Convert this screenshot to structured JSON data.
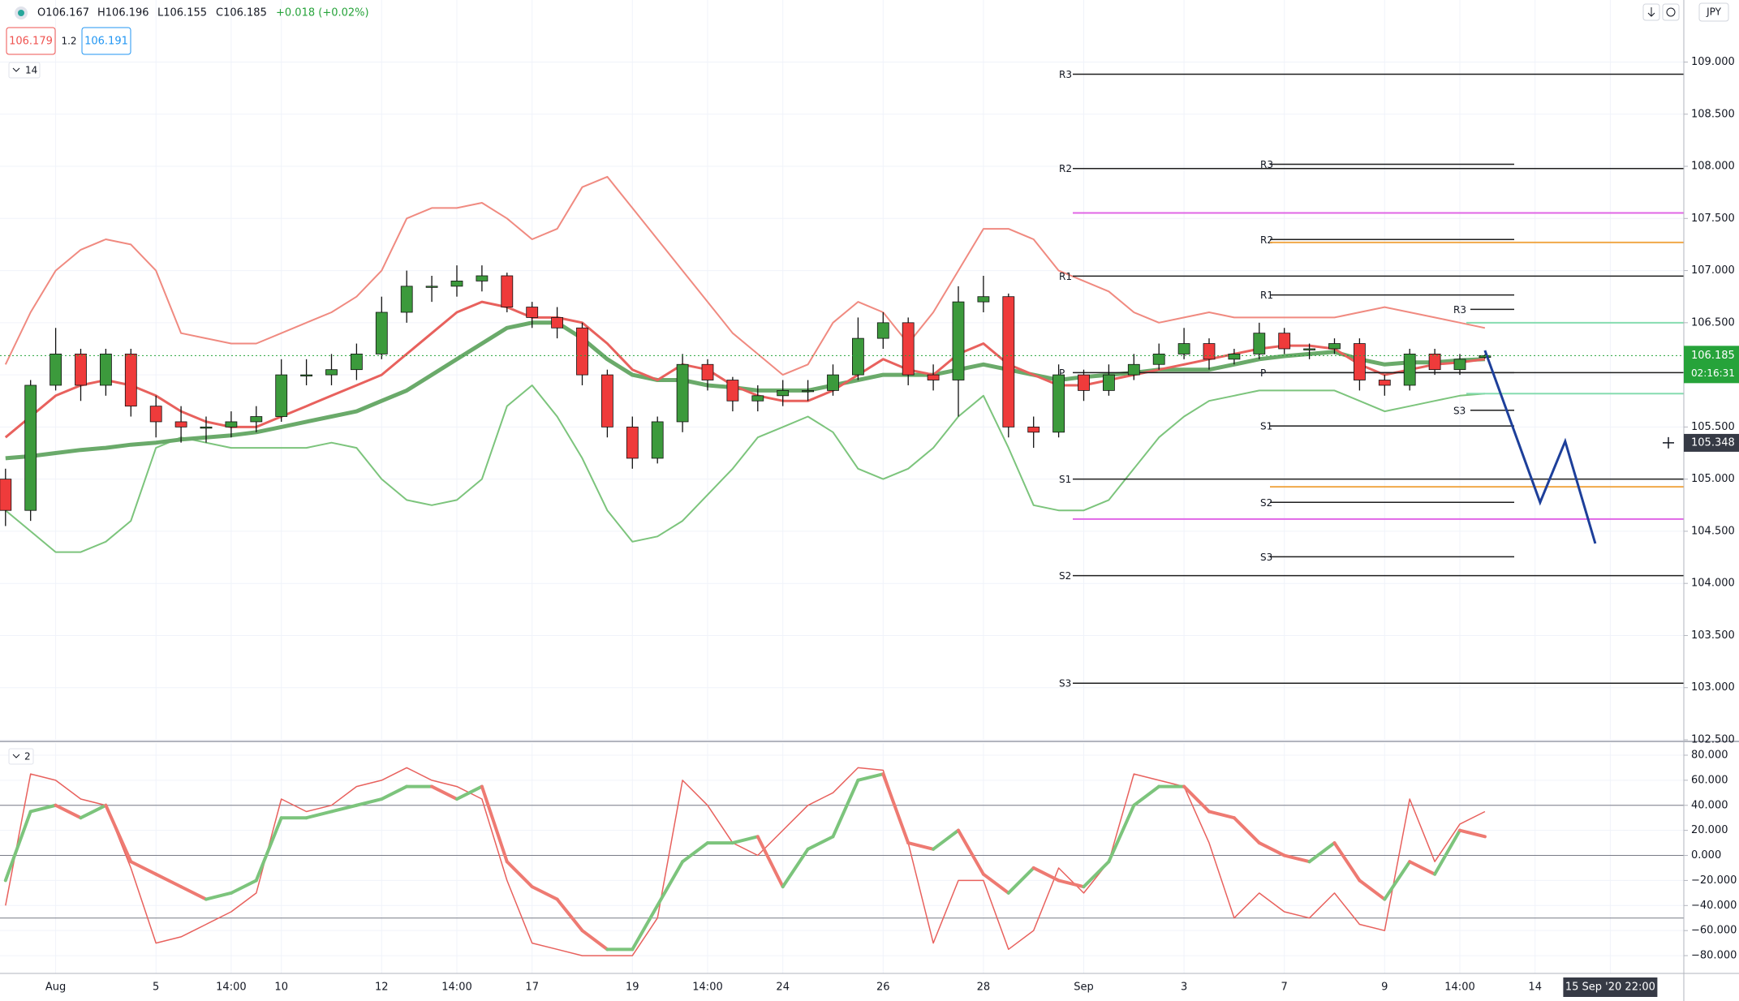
{
  "chart_data": {
    "type": "candlestick",
    "header": {
      "ohlc": [
        "O106.167",
        "H106.196",
        "L106.155",
        "C106.185"
      ],
      "change": "+0.018 (+0.02%)",
      "bid": "106.179",
      "spread": "1.2",
      "ask": "106.191",
      "indicator_length": "14",
      "oscillator_length": "2",
      "currency": "JPY"
    },
    "categories": [
      null,
      null,
      "Aug",
      null,
      null,
      null,
      "5",
      null,
      null,
      "14:00",
      null,
      "10",
      null,
      null,
      null,
      "12",
      null,
      null,
      "14:00",
      null,
      null,
      "17",
      null,
      null,
      null,
      "19",
      null,
      null,
      "14:00",
      null,
      null,
      "24",
      null,
      null,
      null,
      "26",
      null,
      null,
      null,
      "28",
      null,
      null,
      null,
      "Sep",
      null,
      null,
      null,
      "3",
      null,
      null,
      null,
      "7",
      null,
      null,
      null,
      "9",
      null,
      null,
      "14:00",
      null,
      null,
      "14",
      null,
      null,
      "15 Sep '20 22:00",
      null
    ],
    "open": [
      105.0,
      104.7,
      105.9,
      106.2,
      105.9,
      106.2,
      105.7,
      105.55,
      105.5,
      105.5,
      105.55,
      105.6,
      106.0,
      106.0,
      106.05,
      106.2,
      106.6,
      106.85,
      106.85,
      106.9,
      106.95,
      106.65,
      106.55,
      106.45,
      106.0,
      105.5,
      105.2,
      105.55,
      106.1,
      105.95,
      105.75,
      105.8,
      105.85,
      105.85,
      106.0,
      106.35,
      106.5,
      106.0,
      105.95,
      106.7,
      106.75,
      105.5,
      105.45,
      106.0,
      105.85,
      106.0,
      106.1,
      106.2,
      106.3,
      106.15,
      106.2,
      106.4,
      106.25,
      106.25,
      106.3,
      105.95,
      105.9,
      106.2,
      106.05,
      106.167,
      null,
      null,
      null,
      null,
      null,
      null
    ],
    "high": [
      105.1,
      105.95,
      106.45,
      106.25,
      106.25,
      106.25,
      105.8,
      105.7,
      105.6,
      105.65,
      105.7,
      106.15,
      106.15,
      106.2,
      106.3,
      106.75,
      107.0,
      106.95,
      107.05,
      107.05,
      106.98,
      106.7,
      106.65,
      106.5,
      106.05,
      105.6,
      105.6,
      106.2,
      106.15,
      105.98,
      105.9,
      105.95,
      105.95,
      106.1,
      106.55,
      106.6,
      106.55,
      106.1,
      106.85,
      106.95,
      106.78,
      105.6,
      106.1,
      106.05,
      106.1,
      106.2,
      106.3,
      106.45,
      106.35,
      106.25,
      106.5,
      106.45,
      106.3,
      106.35,
      106.35,
      106.0,
      106.25,
      106.25,
      106.2,
      106.196,
      null,
      null,
      null,
      null,
      null,
      null
    ],
    "low": [
      104.55,
      104.6,
      105.85,
      105.75,
      105.8,
      105.6,
      105.4,
      105.35,
      105.35,
      105.4,
      105.45,
      105.55,
      105.9,
      105.9,
      105.95,
      106.15,
      106.5,
      106.7,
      106.75,
      106.8,
      106.6,
      106.45,
      106.35,
      105.9,
      105.4,
      105.1,
      105.15,
      105.45,
      105.85,
      105.65,
      105.65,
      105.7,
      105.75,
      105.8,
      105.95,
      106.25,
      105.9,
      105.85,
      105.6,
      106.6,
      105.4,
      105.3,
      105.4,
      105.75,
      105.8,
      105.95,
      106.05,
      106.15,
      106.05,
      106.1,
      106.15,
      106.2,
      106.15,
      106.2,
      105.85,
      105.8,
      105.85,
      106.0,
      106.0,
      106.155,
      null,
      null,
      null,
      null,
      null,
      null
    ],
    "close": [
      104.7,
      105.9,
      106.2,
      105.9,
      106.2,
      105.7,
      105.55,
      105.5,
      105.5,
      105.55,
      105.6,
      106.0,
      106.0,
      106.05,
      106.2,
      106.6,
      106.85,
      106.85,
      106.9,
      106.95,
      106.65,
      106.55,
      106.45,
      106.0,
      105.5,
      105.2,
      105.55,
      106.1,
      105.95,
      105.75,
      105.8,
      105.85,
      105.85,
      106.0,
      106.35,
      106.5,
      106.0,
      105.95,
      106.7,
      106.75,
      105.5,
      105.45,
      106.0,
      105.85,
      106.0,
      106.1,
      106.2,
      106.3,
      106.15,
      106.2,
      106.4,
      106.25,
      106.25,
      106.3,
      105.95,
      105.9,
      106.2,
      106.05,
      106.15,
      106.185,
      null,
      null,
      null,
      null,
      null,
      null
    ],
    "up_color": "#3c9a3c",
    "down_color": "#ef3b3b",
    "overlays": [
      {
        "color": "#f08a80",
        "width": 2,
        "values": [
          106.1,
          106.6,
          107.0,
          107.2,
          107.3,
          107.25,
          107.0,
          106.4,
          106.35,
          106.3,
          106.3,
          106.4,
          106.5,
          106.6,
          106.75,
          107.0,
          107.5,
          107.6,
          107.6,
          107.65,
          107.5,
          107.3,
          107.4,
          107.8,
          107.9,
          107.6,
          107.3,
          107.0,
          106.7,
          106.4,
          106.2,
          106.0,
          106.1,
          106.5,
          106.7,
          106.6,
          106.3,
          106.6,
          107.0,
          107.4,
          107.4,
          107.3,
          107.0,
          106.9,
          106.8,
          106.6,
          106.5,
          106.55,
          106.6,
          106.55,
          106.55,
          106.55,
          106.55,
          106.55,
          106.6,
          106.65,
          106.6,
          106.55,
          106.5,
          106.45,
          null,
          null,
          null,
          null,
          null,
          null
        ]
      },
      {
        "color": "#7cc47c",
        "width": 2,
        "values": [
          104.7,
          104.5,
          104.3,
          104.3,
          104.4,
          104.6,
          105.3,
          105.4,
          105.35,
          105.3,
          105.3,
          105.3,
          105.3,
          105.35,
          105.3,
          105.0,
          104.8,
          104.75,
          104.8,
          105.0,
          105.7,
          105.9,
          105.6,
          105.2,
          104.7,
          104.4,
          104.45,
          104.6,
          104.85,
          105.1,
          105.4,
          105.5,
          105.6,
          105.45,
          105.1,
          105.0,
          105.1,
          105.3,
          105.6,
          105.8,
          105.3,
          104.75,
          104.7,
          104.7,
          104.8,
          105.1,
          105.4,
          105.6,
          105.75,
          105.8,
          105.85,
          105.85,
          105.85,
          105.85,
          105.75,
          105.65,
          105.7,
          105.75,
          105.8,
          105.82,
          null,
          null,
          null,
          null,
          null,
          null
        ]
      },
      {
        "color": "#6aaa6a",
        "width": 5,
        "values": [
          105.2,
          105.22,
          105.25,
          105.28,
          105.3,
          105.33,
          105.35,
          105.38,
          105.4,
          105.42,
          105.45,
          105.5,
          105.55,
          105.6,
          105.65,
          105.75,
          105.85,
          106.0,
          106.15,
          106.3,
          106.45,
          106.5,
          106.5,
          106.35,
          106.15,
          106.0,
          105.95,
          105.95,
          105.9,
          105.88,
          105.85,
          105.85,
          105.85,
          105.9,
          105.95,
          106.0,
          106.0,
          106.0,
          106.05,
          106.1,
          106.05,
          106.0,
          105.95,
          105.98,
          106.0,
          106.02,
          106.05,
          106.05,
          106.05,
          106.1,
          106.15,
          106.18,
          106.2,
          106.22,
          106.15,
          106.1,
          106.12,
          106.12,
          106.14,
          106.15,
          null,
          null,
          null,
          null,
          null,
          null
        ]
      },
      {
        "color": "#e8615d",
        "width": 3,
        "values": [
          105.4,
          105.6,
          105.8,
          105.9,
          105.95,
          105.9,
          105.8,
          105.65,
          105.55,
          105.5,
          105.5,
          105.6,
          105.7,
          105.8,
          105.9,
          106.0,
          106.2,
          106.4,
          106.6,
          106.7,
          106.65,
          106.55,
          106.55,
          106.5,
          106.3,
          106.05,
          105.95,
          106.1,
          106.05,
          105.9,
          105.8,
          105.75,
          105.75,
          105.85,
          106.0,
          106.15,
          106.05,
          106.0,
          106.2,
          106.3,
          106.1,
          106.0,
          105.9,
          105.9,
          105.95,
          106.0,
          106.05,
          106.1,
          106.15,
          106.2,
          106.25,
          106.28,
          106.28,
          106.25,
          106.1,
          106.0,
          106.05,
          106.1,
          106.12,
          106.15,
          null,
          null,
          null,
          null,
          null,
          null
        ]
      }
    ],
    "ylim": [
      102.5,
      109.595
    ],
    "yticks": [
      {
        "value": 102.5,
        "label": "102.500"
      },
      {
        "value": 103,
        "label": "103.000"
      },
      {
        "value": 103.5,
        "label": "103.500"
      },
      {
        "value": 104,
        "label": "104.000"
      },
      {
        "value": 104.5,
        "label": "104.500"
      },
      {
        "value": 105,
        "label": "105.000"
      },
      {
        "value": 105.5,
        "label": "105.500"
      },
      {
        "value": 106,
        "label": "106.000"
      },
      {
        "value": 106.5,
        "label": "106.500"
      },
      {
        "value": 107,
        "label": "107.000"
      },
      {
        "value": 107.5,
        "label": "107.500"
      },
      {
        "value": 108,
        "label": "108.000"
      },
      {
        "value": 108.5,
        "label": "108.500"
      },
      {
        "value": 109,
        "label": "109.000"
      }
    ],
    "grid": true,
    "pivots": [
      {
        "color": "#1e1e1e",
        "levels": [
          {
            "label": "R3",
            "value": 108.883
          },
          {
            "label": "R2",
            "value": 107.979
          },
          {
            "label": "R1",
            "value": 106.947
          },
          {
            "label": "P",
            "value": 106.021
          },
          {
            "label": "S1",
            "value": 105.0
          },
          {
            "label": "S2",
            "value": 104.074
          },
          {
            "label": "S3",
            "value": 103.043
          }
        ]
      },
      {
        "color": "#1e1e1e",
        "levels": [
          {
            "label": "R3",
            "value": 108.02
          },
          {
            "label": "R2",
            "value": 107.298
          },
          {
            "label": "R1",
            "value": 106.766
          },
          {
            "label": "P",
            "value": 106.021
          },
          {
            "label": "S1",
            "value": 105.51
          },
          {
            "label": "S2",
            "value": 104.777
          },
          {
            "label": "S3",
            "value": 104.255
          }
        ]
      },
      {
        "color": "#1e1e1e",
        "levels": [
          {
            "label": "R3",
            "value": 106.628
          },
          {
            "label": "S3",
            "value": 105.66
          }
        ]
      }
    ],
    "levels": [
      {
        "color": "#e066e6",
        "values": [
          107.553,
          104.617
        ]
      },
      {
        "color": "#f0a848",
        "values": [
          107.27,
          104.926
        ]
      },
      {
        "color": "#86dcb0",
        "values": [
          106.5,
          105.82
        ]
      }
    ],
    "last_price": {
      "value": 106.185,
      "label": "106.185",
      "countdown": "02:16:31",
      "color": "#26a33a"
    },
    "crosshair_price": {
      "value": 105.348,
      "label": "105.348"
    },
    "projection": {
      "color": "#1d3f9a",
      "x": [
        59,
        61.2,
        62.2,
        63.4
      ],
      "y": [
        106.234,
        104.777,
        105.362,
        104.383
      ]
    },
    "oscillator": {
      "ylim": [
        -94.2,
        89.7
      ],
      "yticks": [
        {
          "value": 80,
          "label": "80.000"
        },
        {
          "value": 60,
          "label": "60.000"
        },
        {
          "value": 40,
          "label": "40.000"
        },
        {
          "value": 20,
          "label": "20.000"
        },
        {
          "value": 0,
          "label": "0.000"
        },
        {
          "value": -20,
          "label": "−20.000"
        },
        {
          "value": -40,
          "label": "−40.000"
        },
        {
          "value": -60,
          "label": "−60.000"
        },
        {
          "value": -80,
          "label": "−80.000"
        }
      ],
      "levels": [
        40,
        0,
        -50
      ],
      "main": {
        "up_color": "#7cc47c",
        "down_color": "#ee7a72",
        "values": [
          -20,
          35,
          40,
          30,
          40,
          -5,
          -15,
          -25,
          -35,
          -30,
          -20,
          30,
          30,
          35,
          40,
          45,
          55,
          55,
          45,
          55,
          -5,
          -25,
          -35,
          -60,
          -75,
          -75,
          -40,
          -5,
          10,
          10,
          15,
          -25,
          5,
          15,
          60,
          65,
          10,
          5,
          20,
          -15,
          -30,
          -10,
          -20,
          -25,
          -5,
          40,
          55,
          55,
          35,
          30,
          10,
          0,
          -5,
          10,
          -20,
          -35,
          -5,
          -15,
          20,
          15,
          null,
          null,
          null,
          null,
          null,
          null
        ]
      },
      "signal": {
        "color": "#e8615d",
        "values": [
          -40,
          65,
          60,
          45,
          40,
          -10,
          -70,
          -65,
          -55,
          -45,
          -30,
          45,
          35,
          40,
          55,
          60,
          70,
          60,
          55,
          45,
          -20,
          -70,
          -75,
          -80,
          -80,
          -80,
          -50,
          60,
          40,
          10,
          0,
          20,
          40,
          50,
          70,
          68,
          10,
          -70,
          -20,
          -20,
          -75,
          -60,
          -10,
          -30,
          -5,
          65,
          60,
          55,
          10,
          -50,
          -30,
          -45,
          -50,
          -30,
          -55,
          -60,
          45,
          -5,
          25,
          35,
          null,
          null,
          null,
          null,
          null,
          null
        ]
      }
    }
  }
}
